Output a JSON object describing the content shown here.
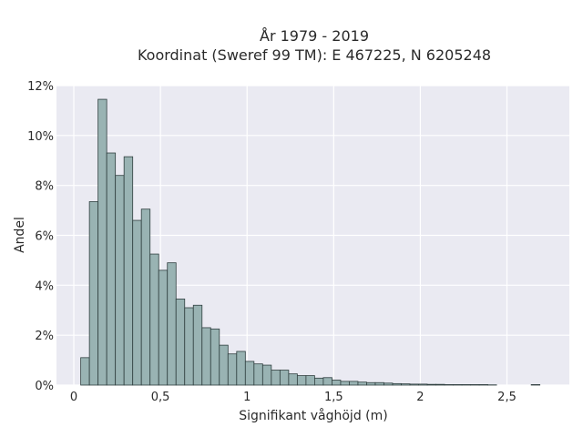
{
  "chart_data": {
    "type": "bar",
    "title_line1": "År 1979 - 2019",
    "title_line2": "Koordinat (Sweref 99 TM): E 467225, N 6205248",
    "xlabel": "Signifikant våghöjd (m)",
    "ylabel": "Andel",
    "xlim": [
      -0.1,
      2.86
    ],
    "ylim": [
      0,
      12
    ],
    "xticks": [
      {
        "value": 0,
        "label": "0"
      },
      {
        "value": 0.5,
        "label": "0,5"
      },
      {
        "value": 1,
        "label": "1"
      },
      {
        "value": 1.5,
        "label": "1,5"
      },
      {
        "value": 2,
        "label": "2"
      },
      {
        "value": 2.5,
        "label": "2,5"
      }
    ],
    "yticks": [
      {
        "value": 0,
        "label": "0%"
      },
      {
        "value": 2,
        "label": "2%"
      },
      {
        "value": 4,
        "label": "4%"
      },
      {
        "value": 6,
        "label": "6%"
      },
      {
        "value": 8,
        "label": "8%"
      },
      {
        "value": 10,
        "label": "10%"
      },
      {
        "value": 12,
        "label": "12%"
      }
    ],
    "bin_start": 0.04,
    "bin_width": 0.05,
    "values": [
      1.1,
      7.35,
      11.45,
      9.3,
      8.4,
      9.15,
      6.6,
      7.05,
      5.25,
      4.6,
      4.9,
      3.45,
      3.1,
      3.2,
      2.3,
      2.25,
      1.6,
      1.25,
      1.35,
      0.95,
      0.85,
      0.8,
      0.6,
      0.6,
      0.45,
      0.38,
      0.38,
      0.28,
      0.3,
      0.2,
      0.15,
      0.15,
      0.12,
      0.1,
      0.1,
      0.08,
      0.06,
      0.05,
      0.04,
      0.04,
      0.03,
      0.03,
      0.02,
      0.02,
      0.02,
      0.02,
      0.02,
      0.01,
      0,
      0,
      0,
      0,
      0.02
    ],
    "grid": true,
    "colors": {
      "background": "#eaeaf2",
      "bar_fill": "#99b3b3",
      "bar_edge": "#2f3f3f",
      "grid": "#ffffff"
    }
  }
}
